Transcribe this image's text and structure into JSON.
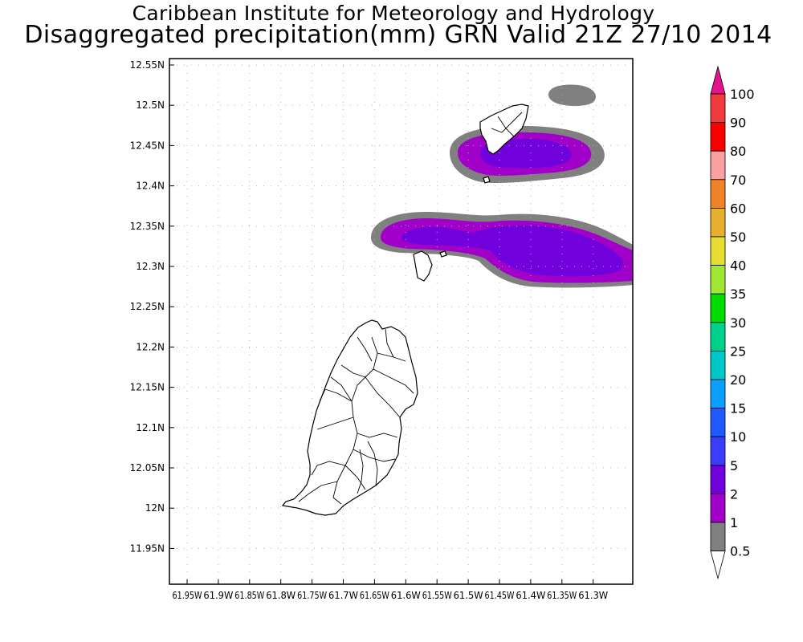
{
  "header": {
    "title": "Caribbean Institute for Meteorology and Hydrology",
    "subtitle": "Disaggregated precipitation(mm) GRN Valid 21Z 27/10 2014"
  },
  "map": {
    "lat_labels": [
      "12.55N",
      "12.5N",
      "12.45N",
      "12.4N",
      "12.35N",
      "12.3N",
      "12.25N",
      "12.2N",
      "12.15N",
      "12.1N",
      "12.05N",
      "12N",
      "11.95N"
    ],
    "lon_labels": [
      "61.95W",
      "61.9W",
      "61.85W",
      "61.8W",
      "61.75W",
      "61.7W",
      "61.65W",
      "61.6W",
      "61.55W",
      "61.5W",
      "61.45W",
      "61.4W",
      "61.35W",
      "61.3W"
    ],
    "lat_values": [
      12.55,
      12.5,
      12.45,
      12.4,
      12.35,
      12.3,
      12.25,
      12.2,
      12.15,
      12.1,
      12.05,
      12.0,
      11.95
    ],
    "lon_values": [
      -61.95,
      -61.9,
      -61.85,
      -61.8,
      -61.75,
      -61.7,
      -61.65,
      -61.6,
      -61.55,
      -61.5,
      -61.45,
      -61.4,
      -61.35,
      -61.3
    ]
  },
  "colorbar": {
    "levels": [
      "0.5",
      "1",
      "2",
      "5",
      "10",
      "15",
      "20",
      "25",
      "30",
      "35",
      "40",
      "50",
      "60",
      "70",
      "80",
      "90",
      "100"
    ],
    "colors": [
      "#808080",
      "#a000c8",
      "#7000dc",
      "#3c3cff",
      "#1e5aff",
      "#0aa0ff",
      "#00c8c8",
      "#00d28c",
      "#00dc00",
      "#a0e632",
      "#e6dc32",
      "#e6af2d",
      "#f08228",
      "#faa0a0",
      "#fa0000",
      "#f03c3c",
      "#e6008c"
    ],
    "top_arrow_color": "#e6148c"
  },
  "precip_colors": {
    "gray": "#808080",
    "outer": "#a000c8",
    "inner": "#7000dc"
  }
}
